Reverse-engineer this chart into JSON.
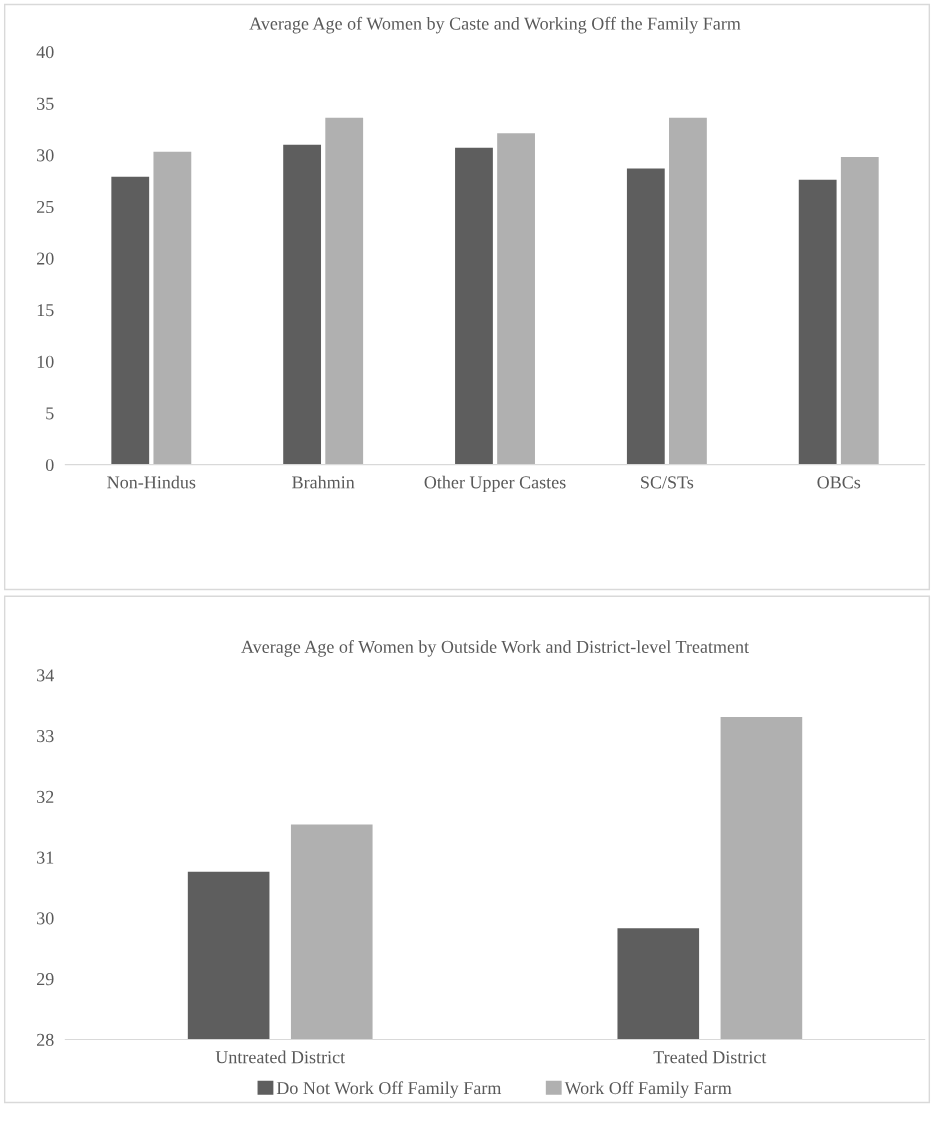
{
  "chart_data": [
    {
      "type": "bar",
      "title": "Average Age of Women by Caste and Working Off the Family Farm",
      "categories": [
        "Non-Hindus",
        "Brahmin",
        "Other Upper Castes",
        "SC/STs",
        "OBCs"
      ],
      "series": [
        {
          "color": "#5e5e5e",
          "values": [
            27.9,
            31.0,
            30.7,
            28.7,
            27.6
          ]
        },
        {
          "color": "#b0b0b0",
          "values": [
            30.3,
            33.6,
            32.1,
            33.6,
            29.8
          ]
        }
      ],
      "ylim": [
        0,
        40
      ],
      "yticks": [
        0,
        5,
        10,
        15,
        20,
        25,
        30,
        35,
        40
      ],
      "grid": false,
      "legend": false
    },
    {
      "type": "bar",
      "title": "Average Age of Women by Outside Work and District-level Treatment",
      "categories": [
        "Untreated District",
        "Treated District"
      ],
      "series": [
        {
          "name": "Do Not Work Off Family Farm",
          "color": "#5e5e5e",
          "values": [
            30.76,
            29.83
          ]
        },
        {
          "name": "Work Off Family Farm",
          "color": "#b0b0b0",
          "values": [
            31.54,
            33.31
          ]
        }
      ],
      "ylim": [
        28,
        34
      ],
      "yticks": [
        28,
        29,
        30,
        31,
        32,
        33,
        34
      ],
      "grid": false,
      "legend": "bottom"
    }
  ]
}
